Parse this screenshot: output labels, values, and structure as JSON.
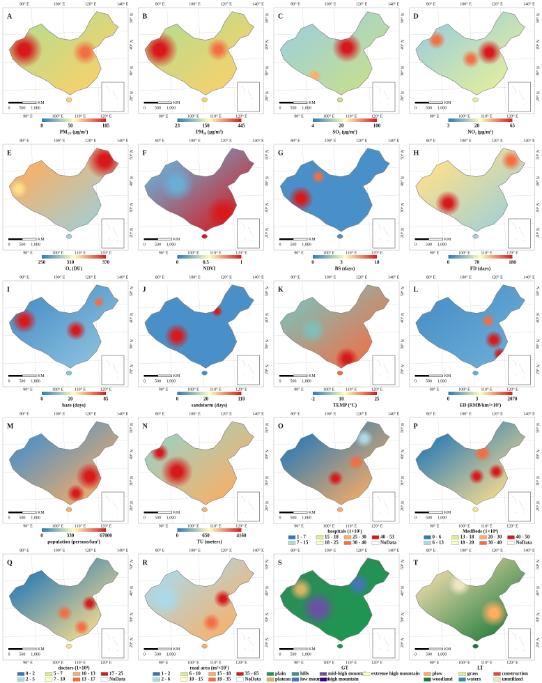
{
  "coords": {
    "top": [
      "80° E",
      "100° E",
      "120° E",
      "140° E"
    ],
    "bottom": [
      "90° E",
      "100° E",
      "110° E",
      "120° E"
    ],
    "right": [
      "50° N",
      "40° N",
      "30° N",
      "20° N"
    ]
  },
  "scale": {
    "unit": "KM",
    "labels": [
      "0",
      "500",
      "1,000"
    ]
  },
  "panels": [
    {
      "letter": "A",
      "title": "PM₂.₅ (μg/m³)",
      "ticks": [
        "8",
        "50",
        "185"
      ]
    },
    {
      "letter": "B",
      "title": "PM₁₀ (μg/m³)",
      "ticks": [
        "23",
        "150",
        "445"
      ]
    },
    {
      "letter": "C",
      "title": "SO₂ (μg/m³)",
      "ticks": [
        "4",
        "20",
        "100"
      ]
    },
    {
      "letter": "D",
      "title": "NO₂ (μg/m³)",
      "ticks": [
        "3",
        "20",
        "65"
      ]
    },
    {
      "letter": "E",
      "title": "O₃ (DU)",
      "ticks": [
        "250",
        "310",
        "370"
      ]
    },
    {
      "letter": "F",
      "title": "NDVI",
      "ticks": [
        "0",
        "0.5",
        "1"
      ]
    },
    {
      "letter": "G",
      "title": "BS (days)",
      "ticks": [
        "0",
        "3",
        "18"
      ]
    },
    {
      "letter": "H",
      "title": "FD (days)",
      "ticks": [
        "0",
        "70",
        "180"
      ]
    },
    {
      "letter": "I",
      "title": "haze (days)",
      "ticks": [
        "0",
        "20",
        "85"
      ]
    },
    {
      "letter": "J",
      "title": "sandstorm (days)",
      "ticks": [
        "0",
        "20",
        "110"
      ]
    },
    {
      "letter": "K",
      "title": "TEMP (°C)",
      "ticks": [
        "-2",
        "10",
        "25"
      ]
    },
    {
      "letter": "L",
      "title": "ED (RMB/km²×10⁷)",
      "ticks": [
        "0",
        "3",
        "2070"
      ]
    },
    {
      "letter": "M",
      "title": "population (persons/km²)",
      "ticks": [
        "0",
        "330",
        "67000"
      ]
    },
    {
      "letter": "N",
      "title": "TU (meters)",
      "ticks": [
        "0",
        "650",
        "4160"
      ]
    },
    {
      "letter": "O",
      "title": "hospitals (1×10²)",
      "legend": [
        "1 - 7",
        "7 - 15",
        "15 - 18",
        "18 - 25",
        "25 - 30",
        "30 - 40",
        "40 - 53",
        "NoData"
      ]
    },
    {
      "letter": "P",
      "title": "MedBeds (1×10⁴)",
      "legend": [
        "0 - 6",
        "6 - 13",
        "13 - 18",
        "18 - 20",
        "20 - 30",
        "30 - 40",
        "40 - 50",
        "NoData"
      ]
    },
    {
      "letter": "Q",
      "title": "doctors (1×10⁴)",
      "legend": [
        "0 - 2",
        "2 - 5",
        "5 - 7",
        "7 - 10",
        "10 - 13",
        "13 - 17",
        "17 - 25",
        "NoData"
      ]
    },
    {
      "letter": "R",
      "title": "road area (m²×10⁷)",
      "legend": [
        "1 - 2",
        "2 - 6",
        "6 - 10",
        "10 - 15",
        "15 - 18",
        "18 - 35",
        "35 - 65",
        "NoData"
      ]
    },
    {
      "letter": "S",
      "title": "GT",
      "legend": [
        "plain",
        "plateau",
        "hills",
        "low mountain",
        "mid-high mountain",
        "high mountain",
        "extreme high mountain"
      ]
    },
    {
      "letter": "T",
      "title": "LT",
      "legend": [
        "plow",
        "woodland",
        "grass",
        "waters",
        "construction",
        "unutilized"
      ]
    }
  ]
}
